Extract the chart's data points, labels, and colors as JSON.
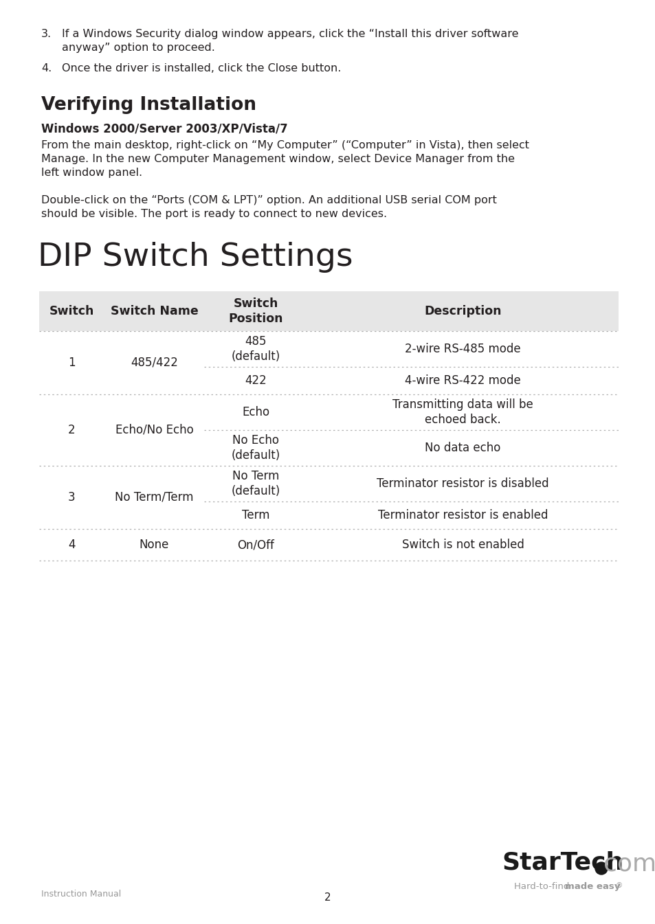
{
  "bg_color": "#ffffff",
  "text_color": "#231f20",
  "gray_color": "#888888",
  "light_gray": "#e8e8e8",
  "item3_text_line1": "If a Windows Security dialog window appears, click the “Install this driver software",
  "item3_text_line2": "anyway” option to proceed.",
  "item4_text": "Once the driver is installed, click the Close button.",
  "section_title": "Verifying Installation",
  "subsection_title": "Windows 2000/Server 2003/XP/Vista/7",
  "para1_line1": "From the main desktop, right-click on “My Computer” (“Computer” in Vista), then select",
  "para1_line2": "Manage. In the new Computer Management window, select Device Manager from the",
  "para1_line3": "left window panel.",
  "para2_line1": "Double-click on the “Ports (COM & LPT)” option. An additional USB serial COM port",
  "para2_line2": "should be visible. The port is ready to connect to new devices.",
  "dip_title": "DIP Switch Settings",
  "table_header": [
    "Switch",
    "Switch Name",
    "Switch\nPosition",
    "Description"
  ],
  "table_rows": [
    {
      "switch": "1",
      "name": "485/422",
      "positions": [
        "485\n(default)",
        "422"
      ],
      "descriptions": [
        "2-wire RS-485 mode",
        "4-wire RS-422 mode"
      ]
    },
    {
      "switch": "2",
      "name": "Echo/No Echo",
      "positions": [
        "Echo",
        "No Echo\n(default)"
      ],
      "descriptions": [
        "Transmitting data will be\nechoed back.",
        "No data echo"
      ]
    },
    {
      "switch": "3",
      "name": "No Term/Term",
      "positions": [
        "No Term\n(default)",
        "Term"
      ],
      "descriptions": [
        "Terminator resistor is disabled",
        "Terminator resistor is enabled"
      ]
    },
    {
      "switch": "4",
      "name": "None",
      "positions": [
        "On/Off"
      ],
      "descriptions": [
        "Switch is not enabled"
      ]
    }
  ],
  "footer_left": "Instruction Manual",
  "footer_center": "2"
}
